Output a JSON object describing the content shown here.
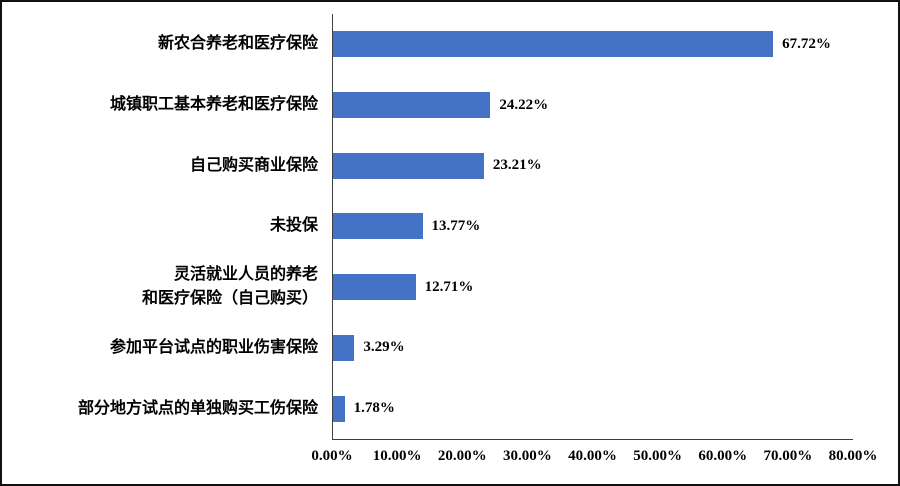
{
  "frame": {
    "background": "#ffffff",
    "border_color": "#111111"
  },
  "chart_data": {
    "type": "bar",
    "orientation": "horizontal",
    "title": "",
    "xlabel": "",
    "ylabel": "",
    "grid": false,
    "legend": "none",
    "bar_color": "#4472C4",
    "xlim": [
      0,
      80
    ],
    "categories": [
      "新农合养老和医疗保险",
      "城镇职工基本养老和医疗保险",
      "自己购买商业保险",
      "未投保",
      "灵活就业人员的养老\n和医疗保险（自己购买）",
      "参加平台试点的职业伤害保险",
      "部分地方试点的单独购买工伤保险"
    ],
    "values": [
      67.72,
      24.22,
      23.21,
      13.77,
      12.71,
      3.29,
      1.78
    ],
    "value_labels": [
      "67.72%",
      "24.22%",
      "23.21%",
      "13.77%",
      "12.71%",
      "3.29%",
      "1.78%"
    ],
    "x_ticks": [
      "0.00%",
      "10.00%",
      "20.00%",
      "30.00%",
      "40.00%",
      "50.00%",
      "60.00%",
      "70.00%",
      "80.00%"
    ]
  }
}
